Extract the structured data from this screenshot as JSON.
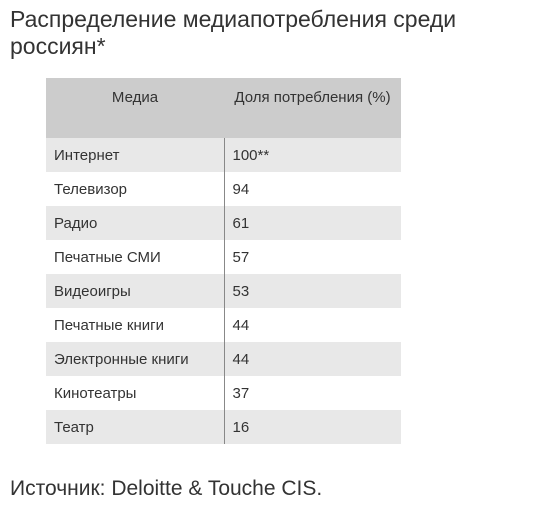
{
  "title": "Распределение медиапотребления среди россиян*",
  "source": "Источник: Deloitte & Touche CIS.",
  "chart_data": {
    "type": "table",
    "columns": [
      "Медиа",
      "Доля потребления (%)"
    ],
    "rows": [
      {
        "media": "Интернет",
        "share": "100**"
      },
      {
        "media": "Телевизор",
        "share": "94"
      },
      {
        "media": "Радио",
        "share": "61"
      },
      {
        "media": "Печатные СМИ",
        "share": "57"
      },
      {
        "media": "Видеоигры",
        "share": "53"
      },
      {
        "media": "Печатные книги",
        "share": "44"
      },
      {
        "media": "Электронные книги",
        "share": "44"
      },
      {
        "media": "Кинотеатры",
        "share": "37"
      },
      {
        "media": "Театр",
        "share": "16"
      }
    ]
  }
}
